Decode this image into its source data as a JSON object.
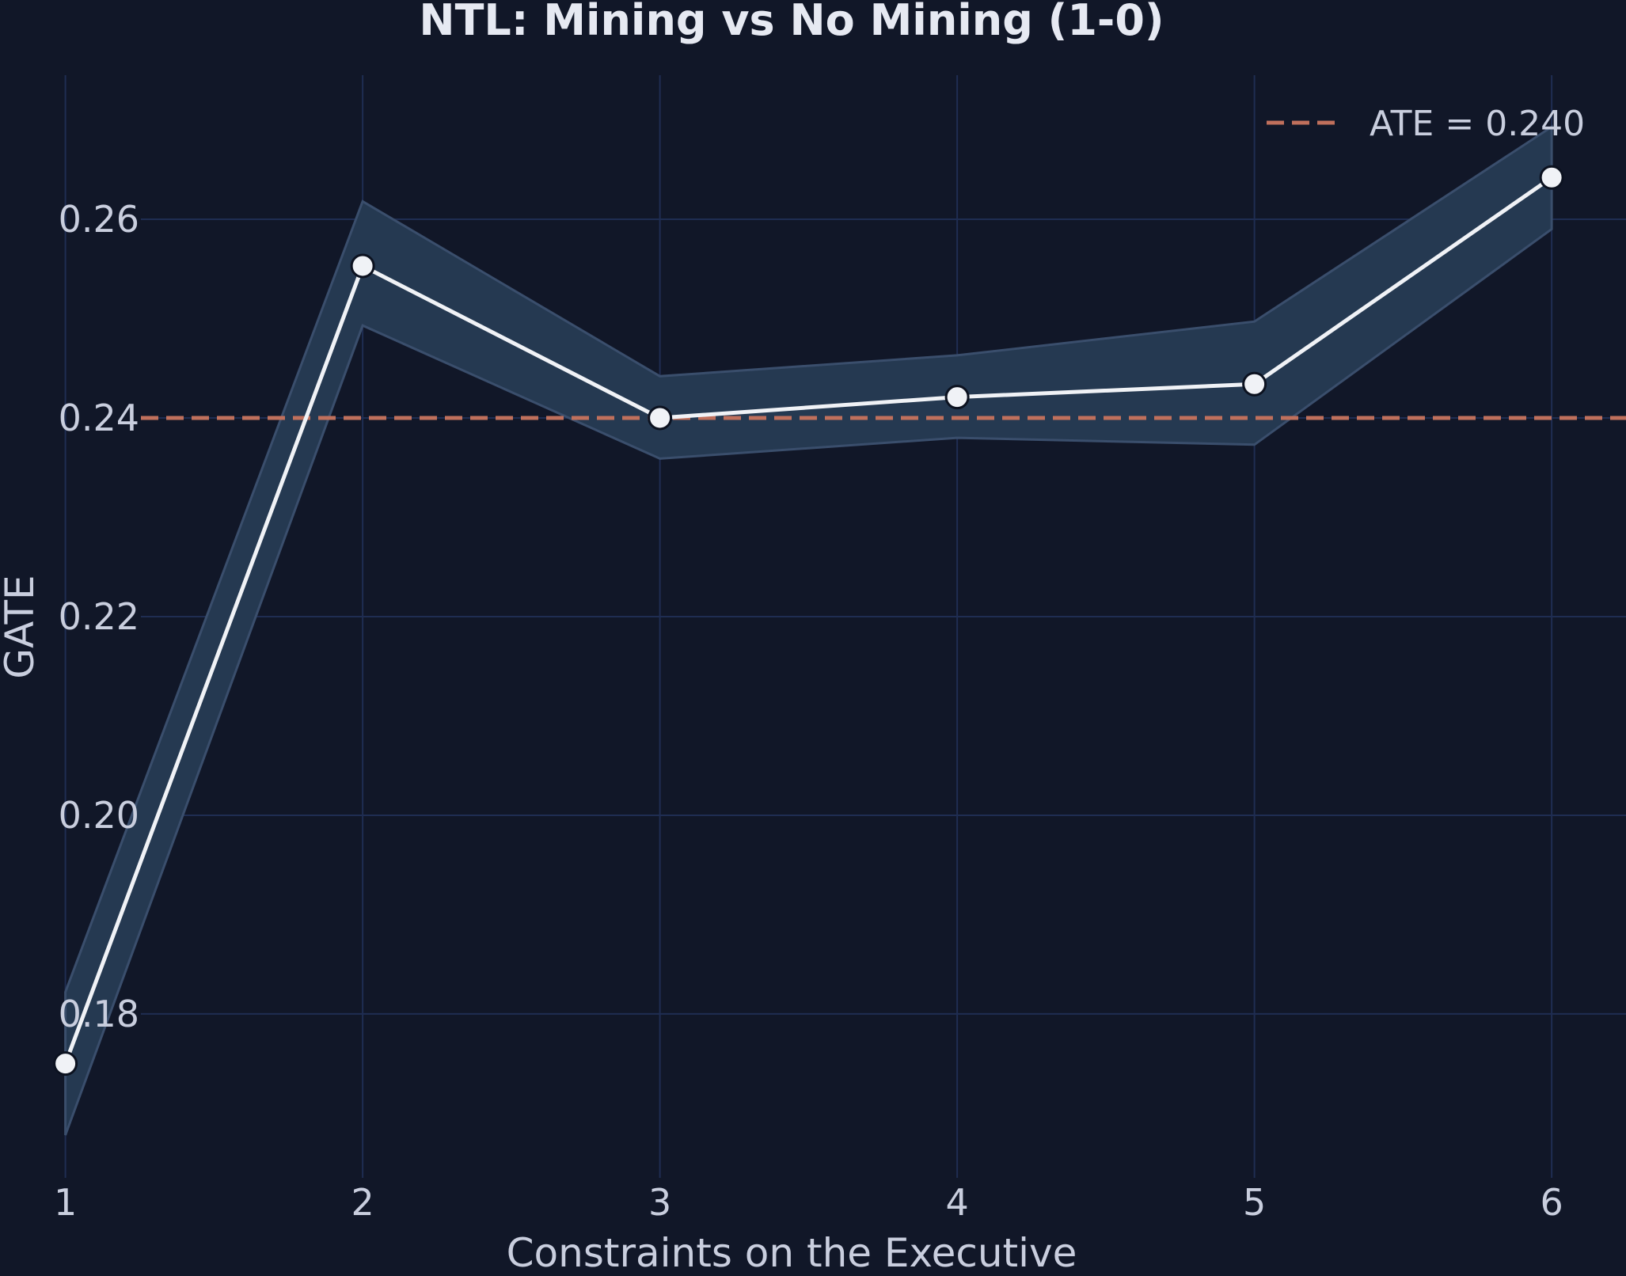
{
  "chart_data": {
    "type": "line",
    "title": "NTL: Mining vs No Mining (1-0)",
    "xlabel": "Constraints on the Executive",
    "ylabel": "GATE",
    "x": [
      1,
      2,
      3,
      4,
      5,
      6
    ],
    "xticks": [
      "1",
      "2",
      "3",
      "4",
      "5",
      "6"
    ],
    "yticks": [
      "0.18",
      "0.20",
      "0.22",
      "0.24",
      "0.26"
    ],
    "xlim": [
      0.78,
      6.25
    ],
    "ylim": [
      0.1635,
      0.2745
    ],
    "series": [
      {
        "values": [
          0.175,
          0.2553,
          0.24,
          0.2421,
          0.2434,
          0.2642
        ],
        "lower": [
          0.1678,
          0.2493,
          0.2359,
          0.238,
          0.2373,
          0.259
        ],
        "upper": [
          0.1822,
          0.2618,
          0.2442,
          0.2463,
          0.2497,
          0.2693
        ]
      }
    ],
    "reference_line": {
      "y": 0.24,
      "label": "ATE = 0.240"
    },
    "legend": {
      "position": "top-right",
      "entries": [
        "ATE = 0.240"
      ]
    },
    "grid": true,
    "colors": {
      "background": "#111728",
      "grid": "#1f2d52",
      "band": "#253951",
      "band_edge": "#3a4e6c",
      "line": "#f0f2f6",
      "marker_fill": "#f0f2f6",
      "marker_edge": "#0c1220",
      "reference": "#c0705c"
    }
  }
}
